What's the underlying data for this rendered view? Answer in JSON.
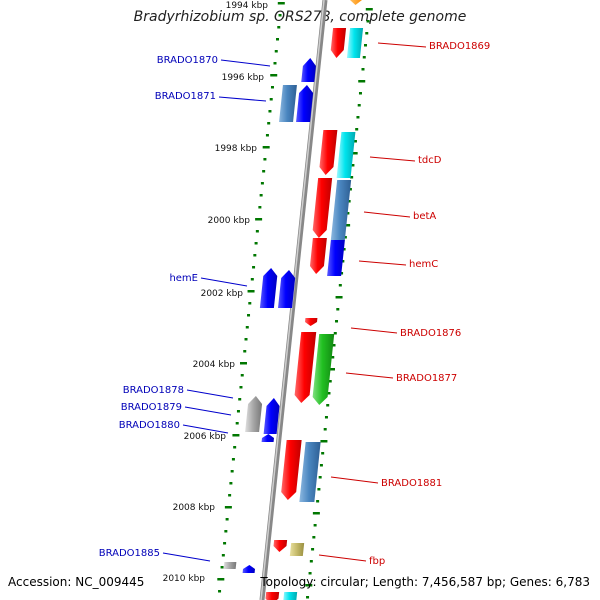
{
  "title": "Bradyrhizobium sp. ORS278, complete genome",
  "footer": {
    "accession": "Accession: NC_009445",
    "summary": "Topology: circular; Length: 7,456,587 bp; Genes: 6,783"
  },
  "kbp_labels": [
    "1994 kbp",
    "1996 kbp",
    "1998 kbp",
    "2000 kbp",
    "2002 kbp",
    "2004 kbp",
    "2006 kbp",
    "2008 kbp",
    "2010 kbp"
  ],
  "left_genes": [
    "BRADO1870",
    "BRADO1871",
    "hemE",
    "BRADO1878",
    "BRADO1879",
    "BRADO1880",
    "BRADO1885"
  ],
  "right_genes": [
    "BRADO1869",
    "tdcD",
    "betA",
    "hemC",
    "BRADO1876",
    "BRADO1877",
    "BRADO1881",
    "fbp"
  ],
  "colors": {
    "forward_strand": "#0000ff",
    "reverse_strand": "#ff0000",
    "steelblue": "#4a86c0",
    "cyan": "#00e5ee",
    "green": "#22c022",
    "gray": "#999999",
    "khaki": "#c8bd6e",
    "tick_green": "#007700",
    "label_left": "#0000b8",
    "label_right": "#cc0000"
  }
}
